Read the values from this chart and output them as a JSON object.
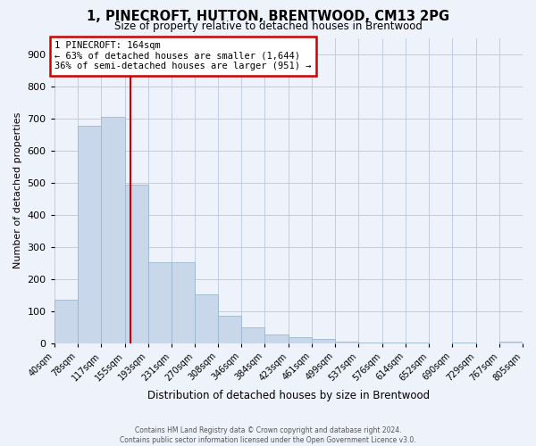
{
  "title": "1, PINECROFT, HUTTON, BRENTWOOD, CM13 2PG",
  "subtitle": "Size of property relative to detached houses in Brentwood",
  "xlabel": "Distribution of detached houses by size in Brentwood",
  "ylabel": "Number of detached properties",
  "bar_color": "#c8d8ea",
  "bar_edge_color": "#9ab8d0",
  "background_color": "#eef2fa",
  "grid_color": "#c0cce0",
  "vline_x": 164,
  "vline_color": "#cc0000",
  "annotation_title": "1 PINECROFT: 164sqm",
  "annotation_line1": "← 63% of detached houses are smaller (1,644)",
  "annotation_line2": "36% of semi-detached houses are larger (951) →",
  "footer1": "Contains HM Land Registry data © Crown copyright and database right 2024.",
  "footer2": "Contains public sector information licensed under the Open Government Licence v3.0.",
  "bin_edges": [
    40,
    78,
    117,
    155,
    193,
    231,
    270,
    308,
    346,
    384,
    423,
    461,
    499,
    537,
    576,
    614,
    652,
    690,
    729,
    767,
    805
  ],
  "bin_counts": [
    136,
    676,
    703,
    494,
    252,
    252,
    151,
    84,
    50,
    28,
    20,
    12,
    6,
    2,
    1,
    1,
    0,
    1,
    0,
    5
  ],
  "ylim": [
    0,
    950
  ],
  "yticks": [
    0,
    100,
    200,
    300,
    400,
    500,
    600,
    700,
    800,
    900
  ]
}
